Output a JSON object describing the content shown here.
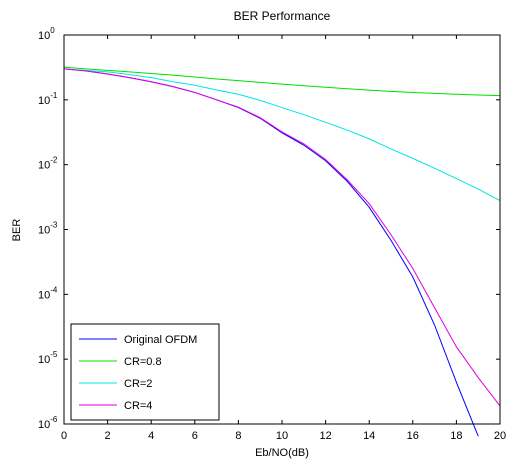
{
  "chart_data": {
    "type": "line",
    "title": "BER Performance",
    "xlabel": "Eb/NO(dB)",
    "ylabel": "BER",
    "xlim": [
      0,
      20
    ],
    "ylim": [
      1e-06,
      1
    ],
    "y_scale": "log",
    "grid": false,
    "legend_position": "bottom-left",
    "x_ticks": [
      0,
      2,
      4,
      6,
      8,
      10,
      12,
      14,
      16,
      18,
      20
    ],
    "y_ticks": [
      {
        "base": "10",
        "exp": "0"
      },
      {
        "base": "10",
        "exp": "-1"
      },
      {
        "base": "10",
        "exp": "-2"
      },
      {
        "base": "10",
        "exp": "-3"
      },
      {
        "base": "10",
        "exp": "-4"
      },
      {
        "base": "10",
        "exp": "-5"
      },
      {
        "base": "10",
        "exp": "-6"
      }
    ],
    "x": [
      0,
      1,
      2,
      3,
      4,
      5,
      6,
      7,
      8,
      9,
      10,
      11,
      12,
      13,
      14,
      15,
      16,
      17,
      18,
      19,
      20
    ],
    "series": [
      {
        "name": "Original OFDM",
        "color": "#0000ff",
        "values": [
          0.3,
          0.28,
          0.25,
          0.22,
          0.19,
          0.16,
          0.13,
          0.1,
          0.076,
          0.052,
          0.031,
          0.02,
          0.0115,
          0.0055,
          0.0022,
          0.00068,
          0.000185,
          3.35e-05,
          4.4e-06,
          6.5e-07,
          null
        ]
      },
      {
        "name": "CR=0.8",
        "color": "#00e000",
        "values": [
          0.32,
          0.3,
          0.285,
          0.27,
          0.255,
          0.24,
          0.225,
          0.21,
          0.198,
          0.186,
          0.175,
          0.165,
          0.156,
          0.148,
          0.141,
          0.135,
          0.13,
          0.126,
          0.122,
          0.119,
          0.116
        ]
      },
      {
        "name": "CR=2",
        "color": "#00e5e5",
        "values": [
          0.3,
          0.285,
          0.27,
          0.245,
          0.22,
          0.19,
          0.168,
          0.142,
          0.122,
          0.098,
          0.076,
          0.059,
          0.045,
          0.034,
          0.025,
          0.0175,
          0.0125,
          0.0088,
          0.0061,
          0.0042,
          0.0028
        ]
      },
      {
        "name": "CR=4",
        "color": "#e000e0",
        "values": [
          0.3,
          0.28,
          0.25,
          0.22,
          0.19,
          0.16,
          0.13,
          0.1,
          0.077,
          0.053,
          0.032,
          0.021,
          0.012,
          0.0058,
          0.0025,
          0.00083,
          0.00025,
          6.2e-05,
          1.55e-05,
          5.2e-06,
          1.9e-06
        ]
      }
    ]
  }
}
